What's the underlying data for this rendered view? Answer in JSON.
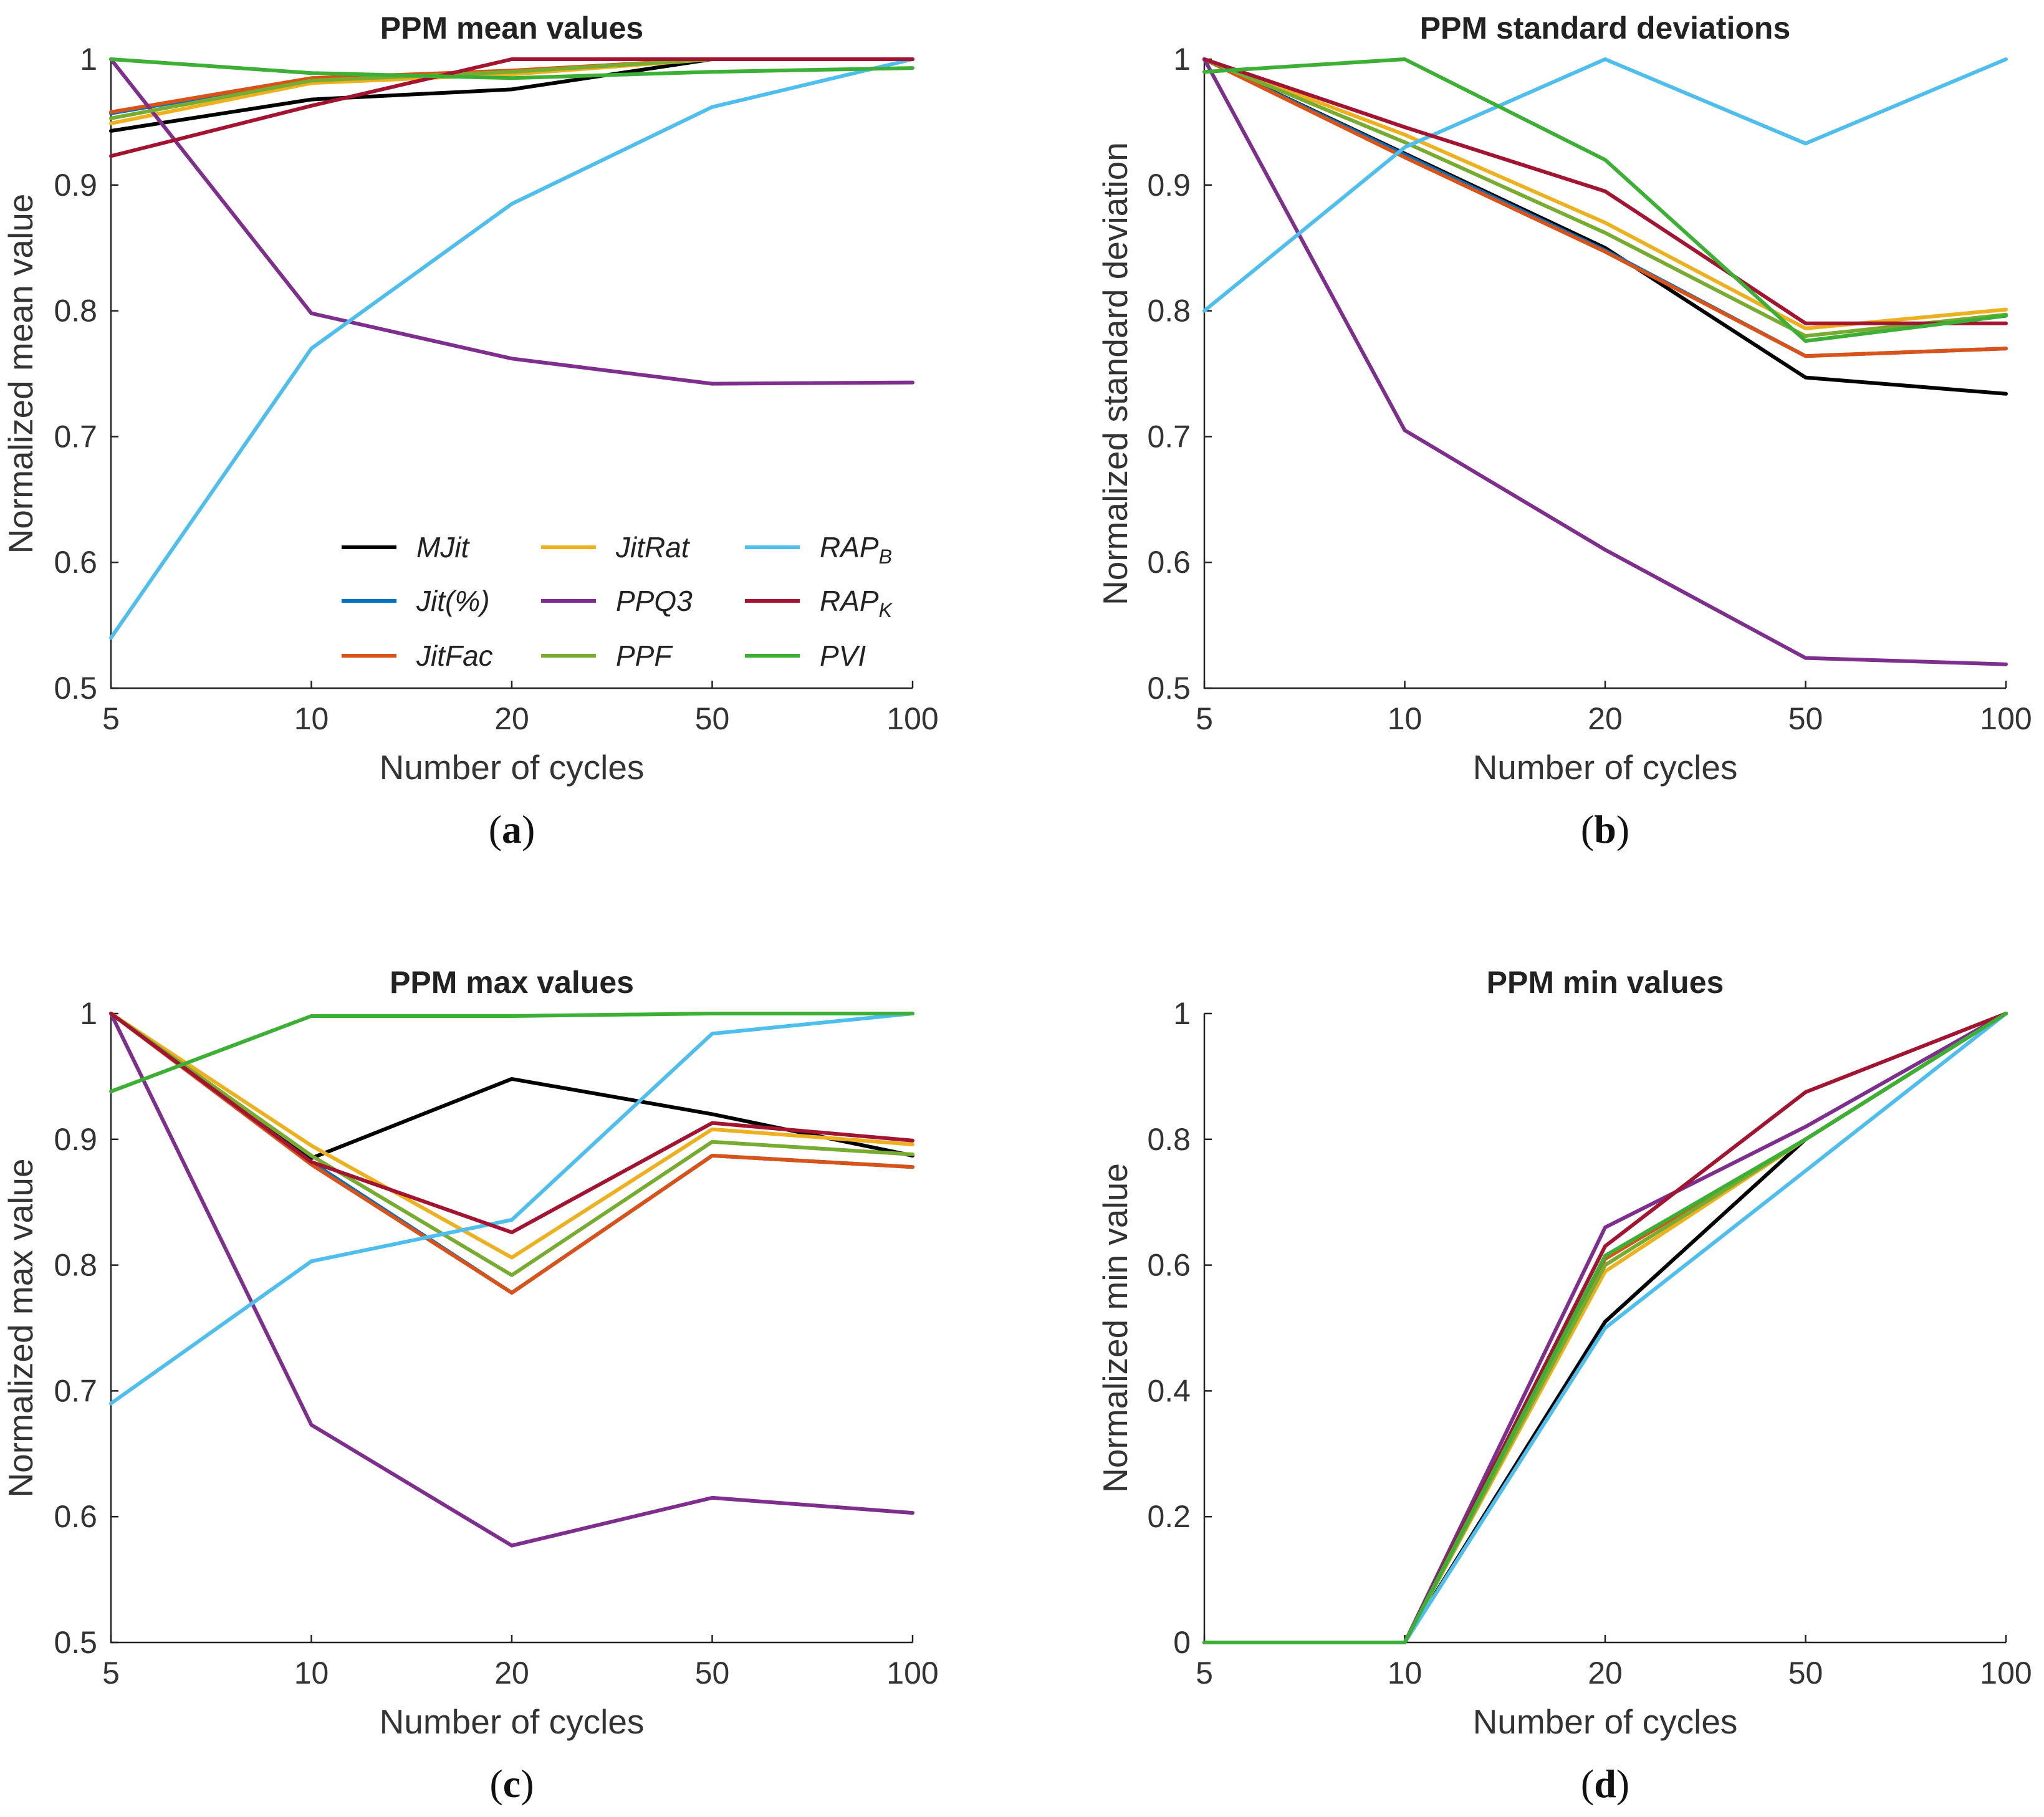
{
  "chart_data": [
    {
      "id": "a",
      "type": "line",
      "title": "PPM mean values",
      "caption": "a",
      "xlabel": "Number of cycles",
      "ylabel": "Normalized mean value",
      "categories": [
        "5",
        "10",
        "20",
        "50",
        "100"
      ],
      "ylim": [
        0.5,
        1
      ],
      "yticks": [
        "0.5",
        "0.6",
        "0.7",
        "0.8",
        "0.9",
        "1"
      ],
      "yticks_values": [
        0.5,
        0.6,
        0.7,
        0.8,
        0.9,
        1.0
      ],
      "legend": {
        "location": "lower-center",
        "entries": [
          {
            "label": "MJit",
            "sub": "",
            "color": "#000000"
          },
          {
            "label": "Jit(%)",
            "sub": "",
            "color": "#0072BD"
          },
          {
            "label": "JitFac",
            "sub": "",
            "color": "#D95319"
          },
          {
            "label": "JitRat",
            "sub": "",
            "color": "#EDB120"
          },
          {
            "label": "PPQ3",
            "sub": "",
            "color": "#7E2F8E"
          },
          {
            "label": "PPF",
            "sub": "",
            "color": "#77AC30"
          },
          {
            "label": "RAP",
            "sub": "B",
            "color": "#4DBEEE"
          },
          {
            "label": "RAP",
            "sub": "K",
            "color": "#A2142F"
          },
          {
            "label": "PVI",
            "sub": "",
            "color": "#3CB035"
          }
        ]
      },
      "series": [
        {
          "name": "MJit",
          "color": "#000000",
          "values": [
            0.943,
            0.968,
            0.976,
            1.0,
            1.0
          ]
        },
        {
          "name": "Jit(%)",
          "color": "#0072BD",
          "values": [
            0.957,
            0.984,
            0.99,
            1.0,
            1.0
          ]
        },
        {
          "name": "JitFac",
          "color": "#D95319",
          "values": [
            0.958,
            0.985,
            0.991,
            1.0,
            1.0
          ]
        },
        {
          "name": "JitRat",
          "color": "#EDB120",
          "values": [
            0.949,
            0.981,
            0.988,
            1.0,
            1.0
          ]
        },
        {
          "name": "PPQ3",
          "color": "#7E2F8E",
          "values": [
            1.0,
            0.798,
            0.762,
            0.742,
            0.743
          ]
        },
        {
          "name": "PPF",
          "color": "#77AC30",
          "values": [
            0.953,
            0.983,
            0.99,
            1.0,
            1.0
          ]
        },
        {
          "name": "RAP_B",
          "color": "#4DBEEE",
          "values": [
            0.54,
            0.77,
            0.885,
            0.962,
            1.0
          ]
        },
        {
          "name": "RAP_K",
          "color": "#A2142F",
          "values": [
            0.923,
            0.963,
            1.0,
            1.0,
            1.0
          ]
        },
        {
          "name": "PVI",
          "color": "#3CB035",
          "values": [
            1.0,
            0.989,
            0.985,
            0.99,
            0.993
          ]
        }
      ]
    },
    {
      "id": "b",
      "type": "line",
      "title": "PPM standard deviations",
      "caption": "b",
      "xlabel": "Number of cycles",
      "ylabel": "Normalized standard deviation",
      "categories": [
        "5",
        "10",
        "20",
        "50",
        "100"
      ],
      "ylim": [
        0.5,
        1
      ],
      "yticks": [
        "0.5",
        "0.6",
        "0.7",
        "0.8",
        "0.9",
        "1"
      ],
      "yticks_values": [
        0.5,
        0.6,
        0.7,
        0.8,
        0.9,
        1.0
      ],
      "series": [
        {
          "name": "MJit",
          "color": "#000000",
          "values": [
            1.0,
            0.925,
            0.85,
            0.747,
            0.734
          ]
        },
        {
          "name": "Jit(%)",
          "color": "#0072BD",
          "values": [
            1.0,
            0.924,
            0.848,
            0.764,
            0.77
          ]
        },
        {
          "name": "JitFac",
          "color": "#D95319",
          "values": [
            1.0,
            0.922,
            0.847,
            0.764,
            0.77
          ]
        },
        {
          "name": "JitRat",
          "color": "#EDB120",
          "values": [
            1.0,
            0.94,
            0.87,
            0.786,
            0.801
          ]
        },
        {
          "name": "PPQ3",
          "color": "#7E2F8E",
          "values": [
            1.0,
            0.705,
            0.61,
            0.524,
            0.519
          ]
        },
        {
          "name": "PPF",
          "color": "#77AC30",
          "values": [
            1.0,
            0.934,
            0.862,
            0.78,
            0.797
          ]
        },
        {
          "name": "RAP_B",
          "color": "#4DBEEE",
          "values": [
            0.8,
            0.93,
            1.0,
            0.933,
            1.0
          ]
        },
        {
          "name": "RAP_K",
          "color": "#A2142F",
          "values": [
            1.0,
            0.946,
            0.895,
            0.79,
            0.79
          ]
        },
        {
          "name": "PVI",
          "color": "#3CB035",
          "values": [
            0.99,
            1.0,
            0.92,
            0.776,
            0.796
          ]
        }
      ]
    },
    {
      "id": "c",
      "type": "line",
      "title": "PPM max values",
      "caption": "c",
      "xlabel": "Number of cycles",
      "ylabel": "Normalized max value",
      "categories": [
        "5",
        "10",
        "20",
        "50",
        "100"
      ],
      "ylim": [
        0.5,
        1
      ],
      "yticks": [
        "0.5",
        "0.6",
        "0.7",
        "0.8",
        "0.9",
        "1"
      ],
      "yticks_values": [
        0.5,
        0.6,
        0.7,
        0.8,
        0.9,
        1.0
      ],
      "series": [
        {
          "name": "MJit",
          "color": "#000000",
          "values": [
            1.0,
            0.885,
            0.948,
            0.92,
            0.887
          ]
        },
        {
          "name": "Jit(%)",
          "color": "#0072BD",
          "values": [
            1.0,
            0.882,
            0.778,
            0.887,
            0.878
          ]
        },
        {
          "name": "JitFac",
          "color": "#D95319",
          "values": [
            1.0,
            0.88,
            0.778,
            0.887,
            0.878
          ]
        },
        {
          "name": "JitRat",
          "color": "#EDB120",
          "values": [
            1.0,
            0.895,
            0.806,
            0.908,
            0.896
          ]
        },
        {
          "name": "PPQ3",
          "color": "#7E2F8E",
          "values": [
            1.0,
            0.673,
            0.577,
            0.615,
            0.603
          ]
        },
        {
          "name": "PPF",
          "color": "#77AC30",
          "values": [
            1.0,
            0.887,
            0.792,
            0.898,
            0.888
          ]
        },
        {
          "name": "RAP_B",
          "color": "#4DBEEE",
          "values": [
            0.69,
            0.803,
            0.836,
            0.984,
            1.0
          ]
        },
        {
          "name": "RAP_K",
          "color": "#A2142F",
          "values": [
            1.0,
            0.882,
            0.826,
            0.913,
            0.899
          ]
        },
        {
          "name": "PVI",
          "color": "#3CB035",
          "values": [
            0.938,
            0.998,
            0.998,
            1.0,
            1.0
          ]
        }
      ]
    },
    {
      "id": "d",
      "type": "line",
      "title": "PPM min values",
      "caption": "d",
      "xlabel": "Number of cycles",
      "ylabel": "Normalized min value",
      "categories": [
        "5",
        "10",
        "20",
        "50",
        "100"
      ],
      "ylim": [
        0,
        1
      ],
      "yticks": [
        "0",
        "0.2",
        "0.4",
        "0.6",
        "0.8",
        "1"
      ],
      "yticks_values": [
        0,
        0.2,
        0.4,
        0.6,
        0.8,
        1.0
      ],
      "series": [
        {
          "name": "MJit",
          "color": "#000000",
          "values": [
            0,
            0,
            0.51,
            0.8,
            1.0
          ]
        },
        {
          "name": "Jit(%)",
          "color": "#0072BD",
          "values": [
            0,
            0,
            0.61,
            0.8,
            1.0
          ]
        },
        {
          "name": "JitFac",
          "color": "#D95319",
          "values": [
            0,
            0,
            0.61,
            0.8,
            1.0
          ]
        },
        {
          "name": "JitRat",
          "color": "#EDB120",
          "values": [
            0,
            0,
            0.59,
            0.8,
            1.0
          ]
        },
        {
          "name": "PPQ3",
          "color": "#7E2F8E",
          "values": [
            0,
            0,
            0.66,
            0.82,
            1.0
          ]
        },
        {
          "name": "PPF",
          "color": "#77AC30",
          "values": [
            0,
            0,
            0.6,
            0.8,
            1.0
          ]
        },
        {
          "name": "RAP_B",
          "color": "#4DBEEE",
          "values": [
            0,
            0,
            0.5,
            0.75,
            1.0
          ]
        },
        {
          "name": "RAP_K",
          "color": "#A2142F",
          "values": [
            0,
            0,
            0.63,
            0.875,
            1.0
          ]
        },
        {
          "name": "PVI",
          "color": "#3CB035",
          "values": [
            0,
            0,
            0.615,
            0.8,
            1.0
          ]
        }
      ]
    }
  ]
}
